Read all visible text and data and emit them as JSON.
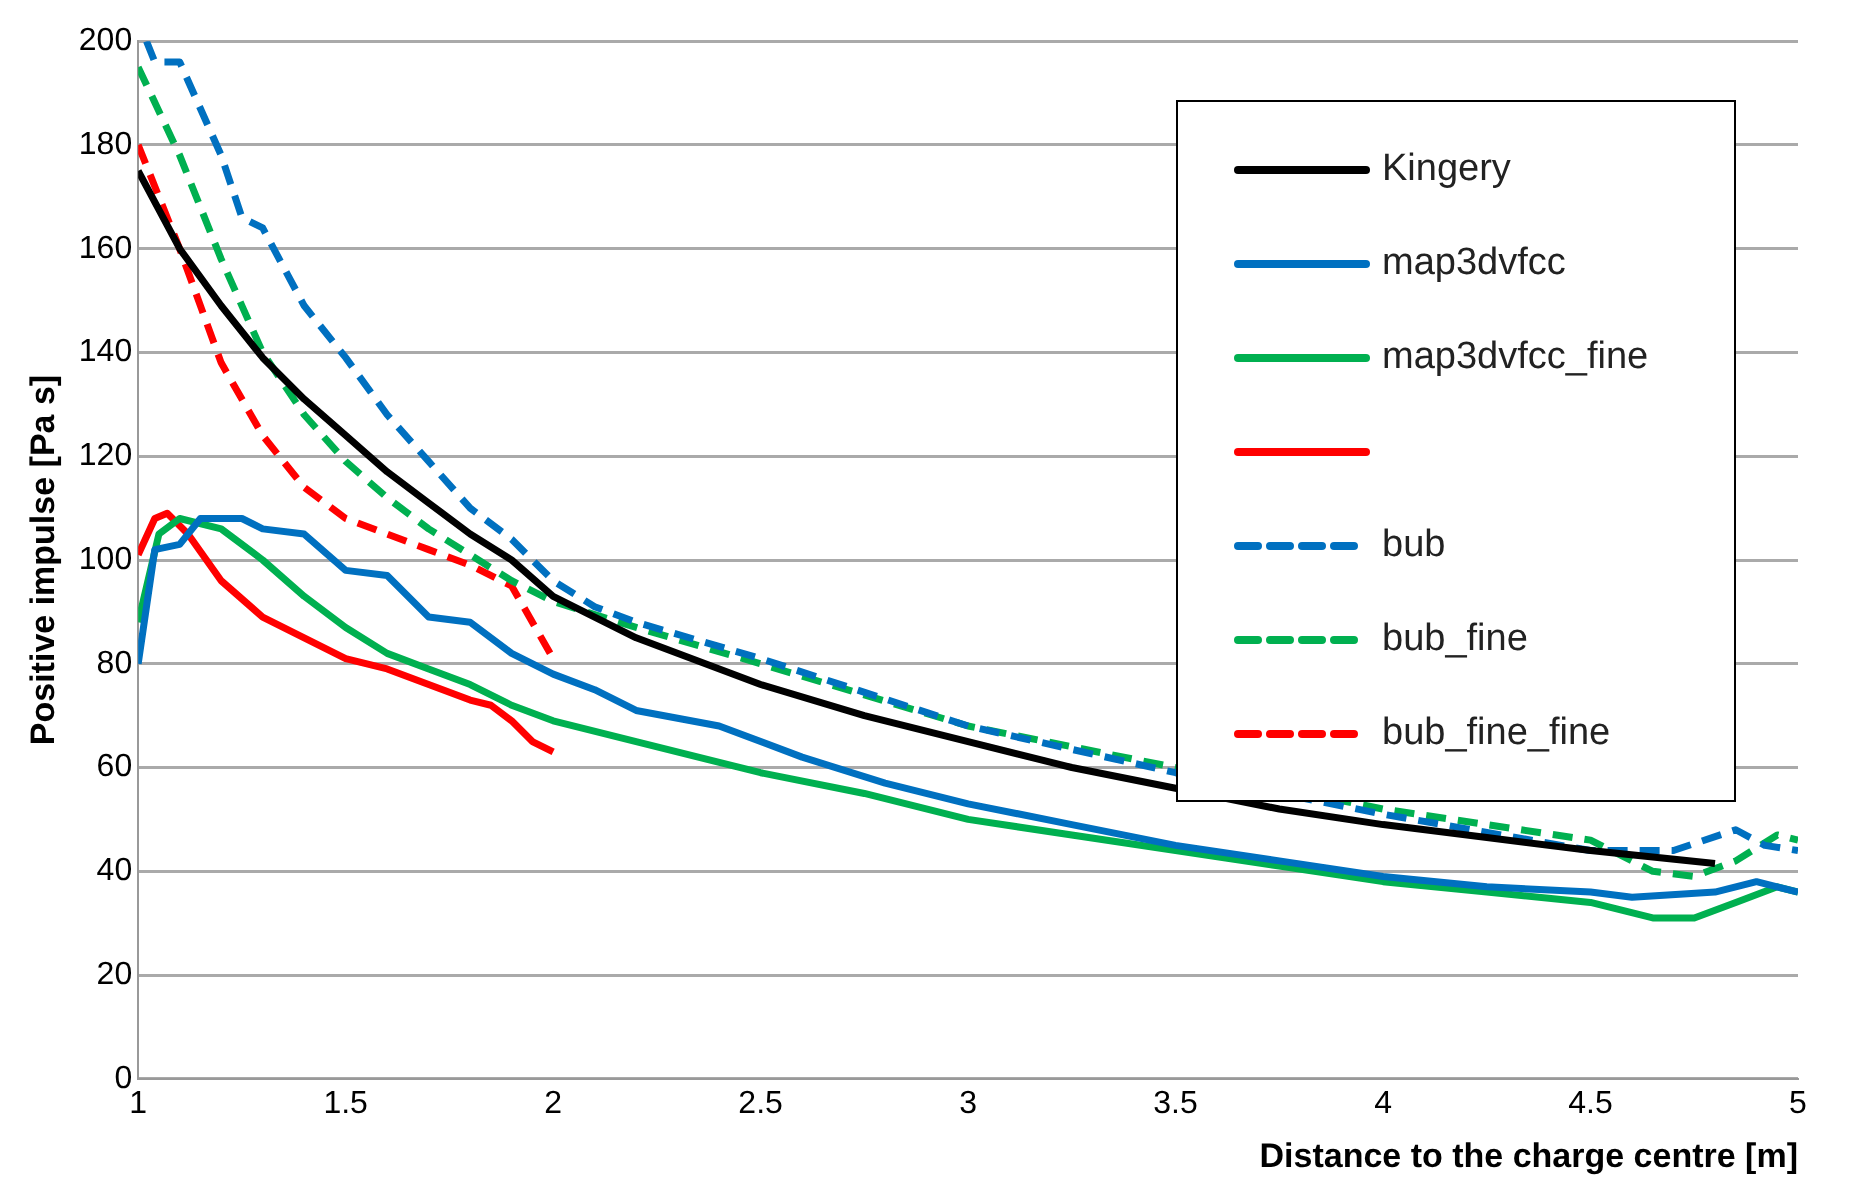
{
  "chart_data": {
    "type": "line",
    "xlabel": "Distance to the charge centre [m]",
    "ylabel": "Positive impulse [Pa s]",
    "xlim": [
      1,
      5
    ],
    "xticks": [
      1,
      1.5,
      2,
      2.5,
      3,
      3.5,
      4,
      4.5,
      5
    ],
    "ylim": [
      0,
      200
    ],
    "yticks": [
      0,
      20,
      40,
      60,
      80,
      100,
      120,
      140,
      160,
      180,
      200
    ],
    "grid": "y",
    "legend": "top right",
    "marker": "none",
    "series": [
      {
        "name": "Kingery",
        "color": "#000000",
        "line_style": "solid",
        "x": [
          1,
          1.1,
          1.2,
          1.3,
          1.4,
          1.5,
          1.6,
          1.7,
          1.8,
          1.9,
          2,
          2.2,
          2.5,
          2.75,
          3,
          3.25,
          3.5,
          3.75,
          4,
          4.25,
          4.5,
          4.8
        ],
        "values": [
          175,
          160,
          149,
          139,
          131,
          124,
          117,
          111,
          105,
          100,
          93,
          85,
          76,
          70,
          65,
          60,
          56,
          52,
          49,
          46.5,
          44,
          41.5
        ]
      },
      {
        "name": "map3dvfcc",
        "color": "#0070c0",
        "line_style": "solid",
        "x": [
          1,
          1.04,
          1.1,
          1.15,
          1.25,
          1.3,
          1.4,
          1.5,
          1.6,
          1.7,
          1.8,
          1.9,
          2,
          2.1,
          2.2,
          2.4,
          2.6,
          2.8,
          3,
          3.25,
          3.5,
          3.75,
          4,
          4.25,
          4.5,
          4.6,
          4.8,
          4.9,
          5
        ],
        "values": [
          80,
          102,
          103,
          108,
          108,
          106,
          105,
          98,
          97,
          89,
          88,
          82,
          78,
          75,
          71,
          68,
          62,
          57,
          53,
          49,
          45,
          42,
          39,
          37,
          36,
          35,
          36,
          38,
          36
        ]
      },
      {
        "name": "map3dvfcc_fine",
        "color": "#00b050",
        "line_style": "solid",
        "x": [
          1,
          1.05,
          1.1,
          1.2,
          1.3,
          1.4,
          1.5,
          1.6,
          1.7,
          1.8,
          1.9,
          2,
          2.2,
          2.5,
          2.75,
          3,
          3.25,
          3.5,
          3.75,
          4,
          4.25,
          4.5,
          4.65,
          4.75,
          4.85,
          4.95,
          5
        ],
        "values": [
          88,
          105,
          108,
          106,
          100,
          93,
          87,
          82,
          79,
          76,
          72,
          69,
          65,
          59,
          55,
          50,
          47,
          44,
          41,
          38,
          36,
          34,
          31,
          31,
          34,
          37,
          36
        ]
      },
      {
        "color": "#ff0000",
        "line_style": "solid",
        "x": [
          1,
          1.04,
          1.07,
          1.12,
          1.2,
          1.3,
          1.4,
          1.5,
          1.6,
          1.7,
          1.8,
          1.85,
          1.9,
          1.95,
          2
        ],
        "values": [
          101,
          108,
          109,
          105,
          96,
          89,
          85,
          81,
          79,
          76,
          73,
          72,
          69,
          65,
          63
        ]
      },
      {
        "name": "bub",
        "color": "#0070c0",
        "line_style": "dashed",
        "x": [
          1.02,
          1.04,
          1.1,
          1.2,
          1.25,
          1.3,
          1.4,
          1.5,
          1.6,
          1.7,
          1.8,
          1.9,
          2,
          2.1,
          2.2,
          2.5,
          3,
          3.5,
          4,
          4.5,
          4.7,
          4.85,
          4.92,
          5
        ],
        "values": [
          200,
          196,
          196,
          178,
          166,
          164,
          149,
          139,
          128,
          119,
          110,
          104,
          96,
          91,
          88,
          81,
          68,
          59,
          51,
          44,
          44,
          48,
          45,
          44
        ]
      },
      {
        "name": "bub_fine",
        "color": "#00b050",
        "line_style": "dashed",
        "x": [
          1,
          1.1,
          1.2,
          1.3,
          1.4,
          1.5,
          1.6,
          1.7,
          1.8,
          1.9,
          2,
          2.2,
          2.5,
          3,
          3.5,
          4,
          4.5,
          4.65,
          4.75,
          4.85,
          4.95,
          5
        ],
        "values": [
          195,
          178,
          158,
          140,
          128,
          119,
          112,
          106,
          101,
          96,
          92,
          87,
          80,
          68,
          60,
          52,
          46,
          40,
          39,
          42,
          47,
          46
        ]
      },
      {
        "name": "bub_fine_fine",
        "color": "#ff0000",
        "line_style": "dashed",
        "x": [
          1,
          1.1,
          1.2,
          1.3,
          1.4,
          1.5,
          1.6,
          1.7,
          1.8,
          1.9,
          1.95,
          2
        ],
        "values": [
          180,
          160,
          138,
          124,
          114,
          108,
          105,
          102,
          99,
          95,
          88,
          81
        ]
      }
    ]
  }
}
